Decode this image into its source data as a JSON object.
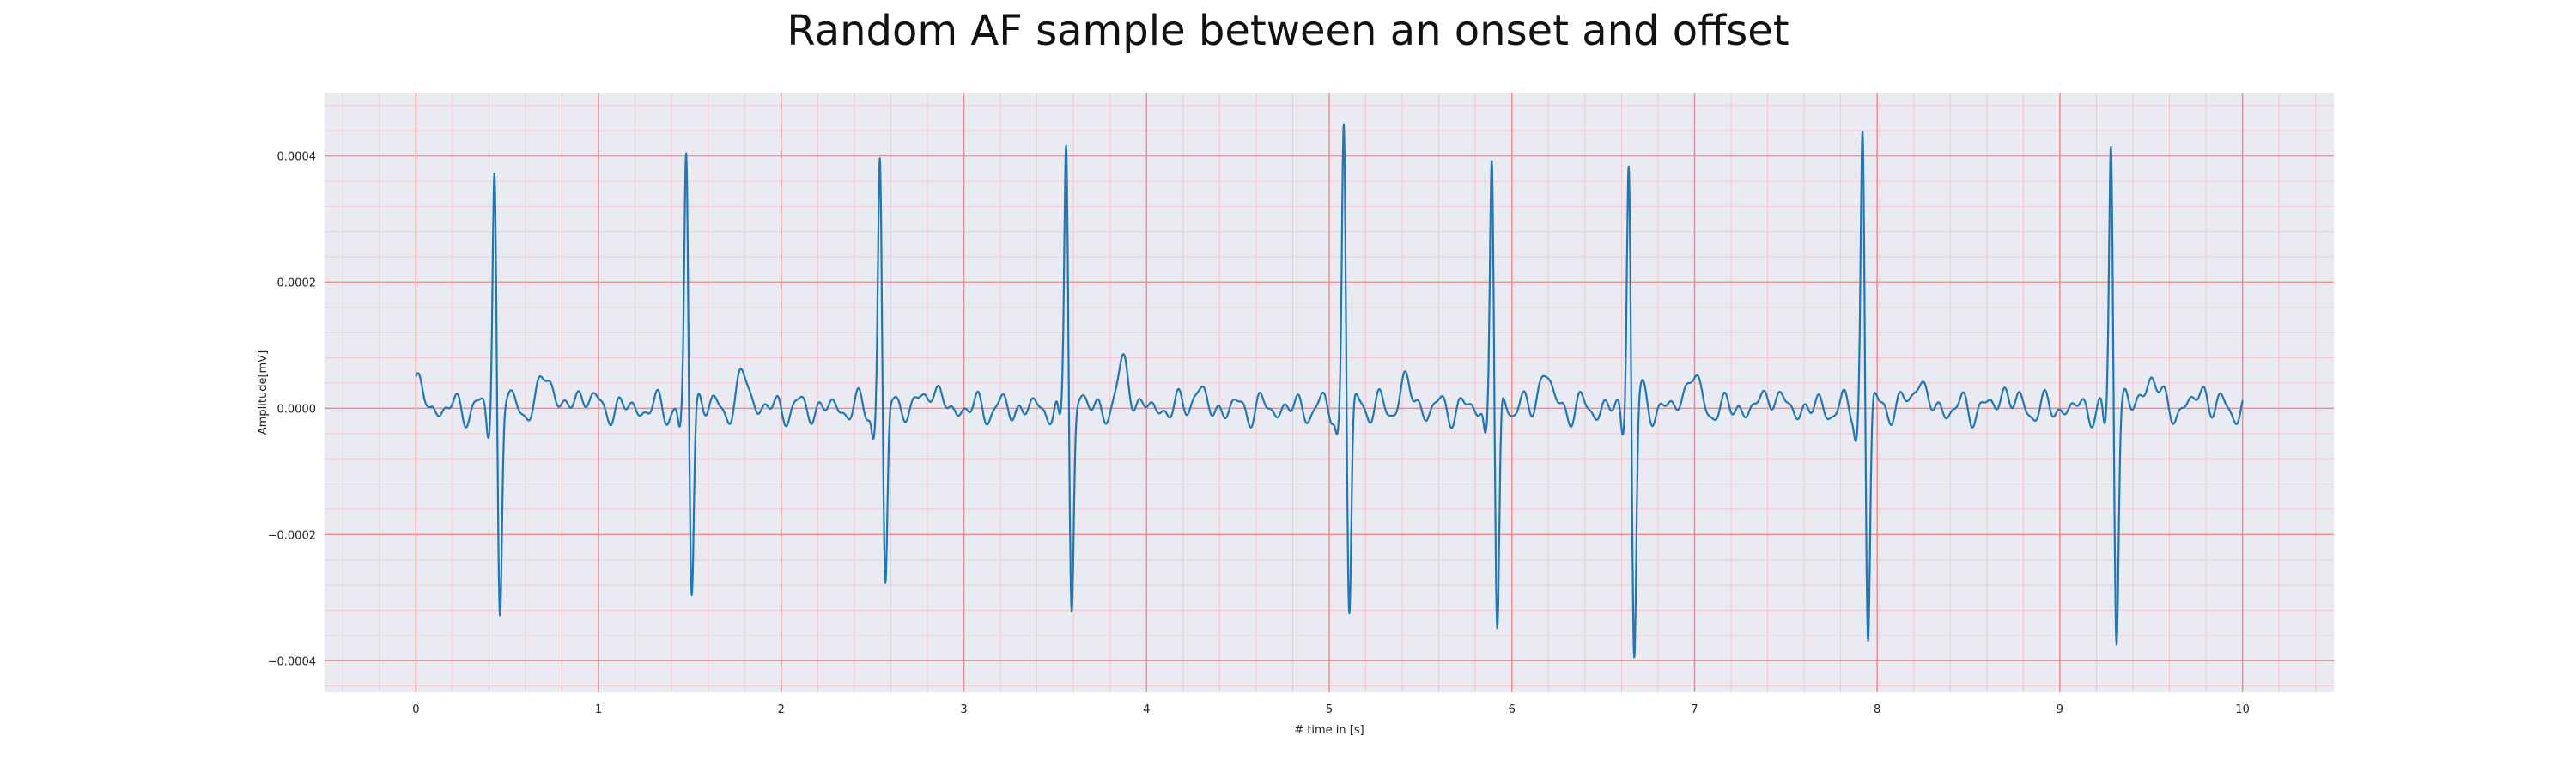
{
  "chart_data": {
    "type": "line",
    "title": "Random AF sample between an onset and offset",
    "xlabel": "# time in [s]",
    "ylabel": "Amplitude[mV]",
    "xlim": [
      -0.5,
      10.5
    ],
    "ylim": [
      -0.00045,
      0.0005
    ],
    "x_ticks": [
      0,
      1,
      2,
      3,
      4,
      5,
      6,
      7,
      8,
      9,
      10
    ],
    "x_tick_labels": [
      "0",
      "1",
      "2",
      "3",
      "4",
      "5",
      "6",
      "7",
      "8",
      "9",
      "10"
    ],
    "y_ticks": [
      -0.0004,
      -0.0002,
      0.0,
      0.0002,
      0.0004
    ],
    "y_tick_labels": [
      "−0.0004",
      "−0.0002",
      "0.0000",
      "0.0002",
      "0.0004"
    ],
    "grid": true,
    "minor_grid": true,
    "legend": "none",
    "colors": {
      "plot_background": "#eaeaf2",
      "major_grid": "#f28b8b",
      "minor_grid": "#f6c6cc",
      "series": "#1f77b4"
    },
    "series": [
      {
        "beats": [
          {
            "t": 0.43,
            "peak": 0.00039,
            "trough": -0.00034
          },
          {
            "t": 1.48,
            "peak": 0.0004,
            "trough": -0.00029
          },
          {
            "t": 2.54,
            "peak": 0.0004,
            "trough": -0.0003
          },
          {
            "t": 3.56,
            "peak": 0.00043,
            "trough": -0.00032
          },
          {
            "t": 5.08,
            "peak": 0.00046,
            "trough": -0.00034
          },
          {
            "t": 5.89,
            "peak": 0.00041,
            "trough": -0.00038
          },
          {
            "t": 6.64,
            "peak": 0.00041,
            "trough": -0.0004
          },
          {
            "t": 7.92,
            "peak": 0.00045,
            "trough": -0.00038
          },
          {
            "t": 9.28,
            "peak": 0.00042,
            "trough": -0.00036
          }
        ],
        "f_waves": [
          {
            "t": 0.72,
            "a": 6e-05
          },
          {
            "t": 0.92,
            "a": 3e-05
          },
          {
            "t": 1.8,
            "a": 5e-05
          },
          {
            "t": 2.82,
            "a": 4e-05
          },
          {
            "t": 3.88,
            "a": 7e-05
          },
          {
            "t": 4.27,
            "a": 3e-05
          },
          {
            "t": 5.42,
            "a": 4e-05
          },
          {
            "t": 6.18,
            "a": 6e-05
          },
          {
            "t": 6.98,
            "a": 6e-05
          },
          {
            "t": 7.42,
            "a": 3e-05
          },
          {
            "t": 8.22,
            "a": 5e-05
          },
          {
            "t": 8.7,
            "a": 3e-05
          },
          {
            "t": 9.5,
            "a": 6e-05
          },
          {
            "t": 9.78,
            "a": 3e-05
          }
        ],
        "x_start": 0.0,
        "x_end": 10.0,
        "y_start": 5e-05
      }
    ]
  }
}
